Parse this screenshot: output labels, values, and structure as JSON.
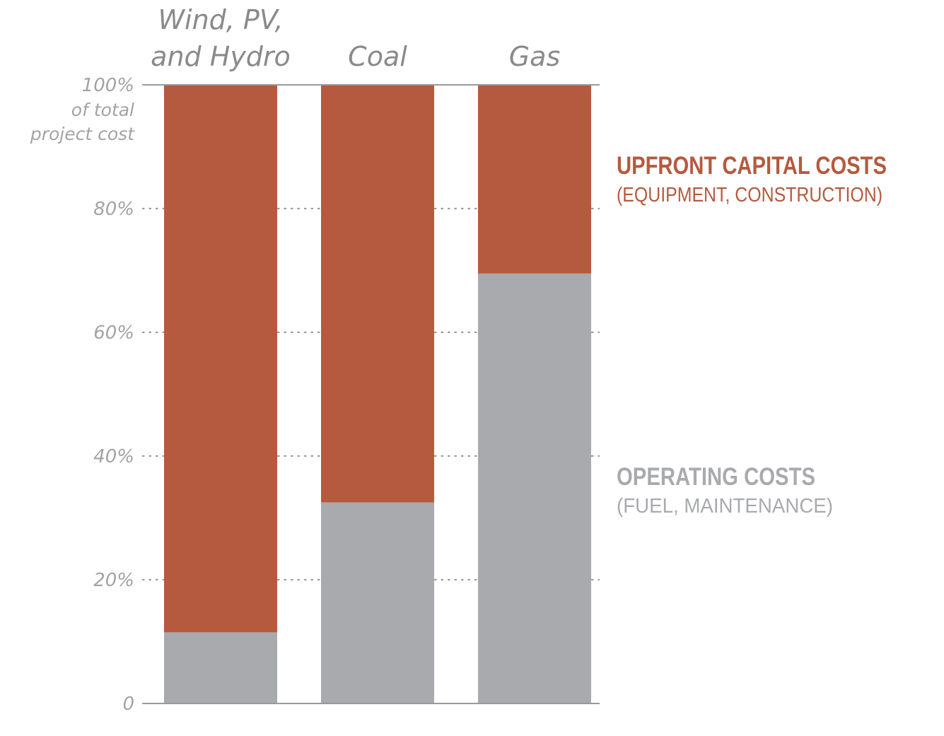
{
  "chart_data": {
    "type": "bar",
    "stacked": true,
    "categories": [
      "Wind, PV, and Hydro",
      "Coal",
      "Gas"
    ],
    "category_label_lines": [
      [
        "Wind, PV,",
        "and Hydro"
      ],
      [
        "Coal"
      ],
      [
        "Gas"
      ]
    ],
    "series": [
      {
        "name": "OPERATING COSTS",
        "subtitle": "(FUEL, MAINTENANCE)",
        "values": [
          11.5,
          32.5,
          69.5
        ],
        "color": "#a9aaad"
      },
      {
        "name": "UPFRONT CAPITAL COSTS",
        "subtitle": "(EQUIPMENT, CONSTRUCTION)",
        "values": [
          88.5,
          67.5,
          30.5
        ],
        "color": "#b55a3e"
      }
    ],
    "ylim": [
      0,
      100
    ],
    "yticks": [
      {
        "value": 0,
        "label": "0"
      },
      {
        "value": 20,
        "label": "20%"
      },
      {
        "value": 40,
        "label": "40%"
      },
      {
        "value": 60,
        "label": "60%"
      },
      {
        "value": 80,
        "label": "80%"
      },
      {
        "value": 100,
        "label": "100%"
      }
    ],
    "ytick_top_sublabel": [
      "of total",
      "project cost"
    ],
    "grid": "dotted",
    "legend": "right"
  }
}
